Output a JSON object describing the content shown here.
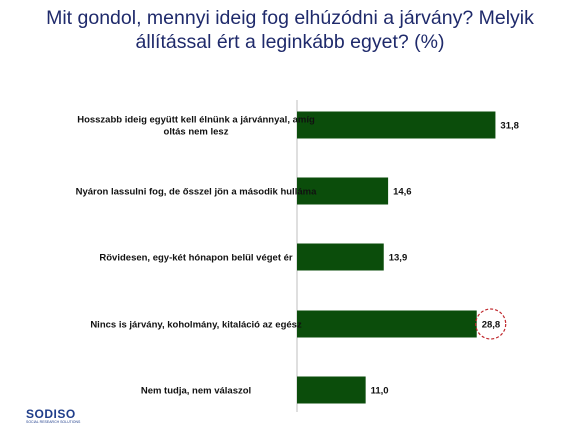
{
  "title_line1": "Mit gondol, mennyi ideig fog elhúzódni a járvány? Melyik",
  "title_line2": "állítással ért a leginkább egyet? (%)",
  "logo": {
    "text": "SODISO",
    "subtext": "SOCIAL RESEARCH SOLUTIONS"
  },
  "colors": {
    "bar": "#0b4d0b",
    "title": "#1f2a6b",
    "highlight": "#c0282d"
  },
  "chart_data": {
    "type": "bar",
    "orientation": "horizontal",
    "title": "Mit gondol, mennyi ideig fog elhúzódni a járvány? Melyik állítással ért a leginkább egyet? (%)",
    "categories": [
      [
        "Hosszabb ideig együtt kell élnünk a járvánnyal, amíg",
        "oltás nem lesz"
      ],
      [
        "Nyáron lassulni fog, de ősszel jön a második hulláma"
      ],
      [
        "Rövidesen, egy-két hónapon belül véget ér"
      ],
      [
        "Nincs is járvány, koholmány, kitaláció az egész"
      ],
      [
        "Nem tudja, nem válaszol"
      ]
    ],
    "values": [
      31.8,
      14.6,
      13.9,
      28.8,
      11.0
    ],
    "value_labels": [
      "31,8",
      "14,6",
      "13,9",
      "28,8",
      "11,0"
    ],
    "highlighted_index": 3,
    "xlim": [
      0,
      35
    ],
    "grid": false
  }
}
